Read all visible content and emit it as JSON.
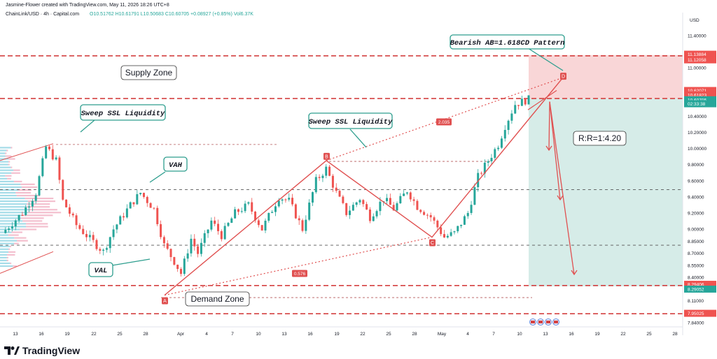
{
  "header": {
    "credit": "Jasmine-Flower created with TradingView.com, May 11, 2026 18:26 UTC+8",
    "symbol": "ChainLink/USD · 4h · Capital.com",
    "ohlc": "O10.51762 H10.61791 L10.50683 C10.60705 +0.08927 (+0.85%) Vol6.37K"
  },
  "footer": {
    "brand": "TradingView"
  },
  "colors": {
    "candle_up": "#26a69a",
    "candle_down": "#ef5350",
    "pattern": "#e05050",
    "supply_fill": "#f8cfd0",
    "target_fill": "#cfe9e4",
    "annotation_border": "#2e9e8e"
  },
  "chart_data": {
    "type": "candlestick",
    "y_axis": {
      "currency": "USD",
      "ylim": [
        7.7,
        11.6
      ],
      "ticks": [
        "11.40000",
        "11.00000",
        "10.40000",
        "10.20000",
        "10.00000",
        "9.80000",
        "9.60000",
        "9.40000",
        "9.20000",
        "9.00000",
        "8.85000",
        "8.70000",
        "8.55000",
        "8.40000",
        "8.11000",
        "7.84000"
      ],
      "price_labels": [
        {
          "text": "11.13884",
          "color": "#ef5350"
        },
        {
          "text": "11.12058",
          "color": "#ef5350"
        },
        {
          "text": "10.62071",
          "color": "#ef5350"
        },
        {
          "text": "10.61823",
          "color": "#ef5350"
        },
        {
          "text": "10.60705",
          "color": "#26a69a"
        },
        {
          "text": "02:33:38",
          "color": "#26a69a"
        },
        {
          "text": "8.29406",
          "color": "#ef5350"
        },
        {
          "text": "8.29052",
          "color": "#26a69a"
        },
        {
          "text": "7.95025",
          "color": "#ef5350"
        }
      ]
    },
    "x_axis": {
      "ticks": [
        "13",
        "16",
        "19",
        "22",
        "25",
        "28",
        "Apr",
        "4",
        "7",
        "10",
        "13",
        "16",
        "19",
        "22",
        "25",
        "28",
        "May",
        "4",
        "7",
        "10",
        "13",
        "16",
        "19",
        "22",
        "25",
        "28"
      ]
    },
    "close_path": [
      [
        0,
        8.95
      ],
      [
        6,
        9.2
      ],
      [
        10,
        9.45
      ],
      [
        13,
        10.02
      ],
      [
        16,
        9.85
      ],
      [
        18,
        9.35
      ],
      [
        22,
        9.05
      ],
      [
        26,
        8.88
      ],
      [
        30,
        8.72
      ],
      [
        33,
        9.0
      ],
      [
        38,
        9.3
      ],
      [
        41,
        9.45
      ],
      [
        45,
        9.25
      ],
      [
        48,
        8.8
      ],
      [
        51,
        8.6
      ],
      [
        53,
        8.45
      ],
      [
        56,
        8.88
      ],
      [
        58,
        8.7
      ],
      [
        62,
        9.1
      ],
      [
        65,
        8.92
      ],
      [
        69,
        9.2
      ],
      [
        73,
        9.3
      ],
      [
        77,
        9.0
      ],
      [
        82,
        9.4
      ],
      [
        85,
        9.35
      ],
      [
        89,
        9.0
      ],
      [
        93,
        9.6
      ],
      [
        96,
        9.75
      ],
      [
        99,
        9.45
      ],
      [
        102,
        9.2
      ],
      [
        106,
        9.38
      ],
      [
        109,
        9.15
      ],
      [
        113,
        9.38
      ],
      [
        116,
        9.25
      ],
      [
        120,
        9.48
      ],
      [
        123,
        9.28
      ],
      [
        127,
        9.15
      ],
      [
        131,
        8.9
      ],
      [
        134,
        8.95
      ],
      [
        138,
        9.2
      ],
      [
        141,
        9.65
      ],
      [
        144,
        9.85
      ],
      [
        147,
        10.05
      ],
      [
        149,
        10.28
      ],
      [
        152,
        10.55
      ],
      [
        154,
        10.58
      ],
      [
        156,
        10.61
      ]
    ],
    "levels": [
      {
        "y": 11.15,
        "style": "dashed-red"
      },
      {
        "y": 10.62,
        "style": "dashed-red"
      },
      {
        "y": 8.3,
        "style": "dashed-red"
      },
      {
        "y": 7.95,
        "style": "dashed-red"
      },
      {
        "y": 9.49,
        "style": "dashed-gray"
      },
      {
        "y": 8.8,
        "style": "dashed-gray"
      },
      {
        "y": 10.05,
        "style": "dashed-brown"
      },
      {
        "y": 9.84,
        "style": "dashed-brown"
      }
    ],
    "pattern_points": {
      "A": 8.18,
      "B": 9.85,
      "C": 8.9,
      "D": 10.88
    },
    "fib_labels": [
      "0.576",
      "2.035"
    ],
    "annotations": {
      "pattern_title": "Bearish AB=1.618CD Pattern",
      "supply_zone": "Supply Zone",
      "sweep_left": "Sweep SSL Liquidity",
      "sweep_mid": "Sweep SSL Liquidity",
      "vah": "VAH",
      "val": "VAL",
      "demand_zone": "Demand Zone",
      "risk_reward": "R:R=1:4.20"
    },
    "position": {
      "entry": 10.62,
      "stop": 11.14,
      "target": 8.29
    }
  }
}
